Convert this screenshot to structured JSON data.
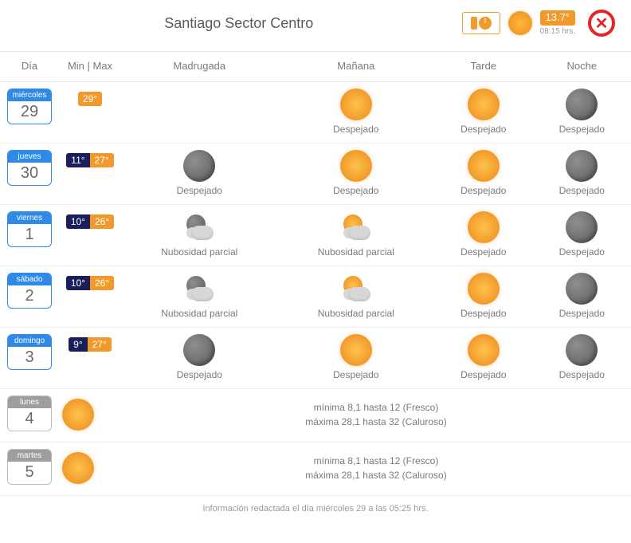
{
  "header": {
    "title": "Santiago Sector Centro",
    "current_temp": "13.7°",
    "current_time": "08:15 hrs.",
    "close_glyph": "✕"
  },
  "columns": {
    "day": "Día",
    "minmax": "Min | Max",
    "periods": [
      "Madrugada",
      "Mañana",
      "Tarde",
      "Noche"
    ]
  },
  "labels": {
    "clear": "Despejado",
    "partial": "Nubosidad parcial"
  },
  "days": [
    {
      "dow": "miércoles",
      "num": "29",
      "chip": "blue",
      "min": null,
      "max": "29°",
      "cells": [
        {
          "icon": null,
          "label": null
        },
        {
          "icon": "sun",
          "label": "Despejado"
        },
        {
          "icon": "sun",
          "label": "Despejado"
        },
        {
          "icon": "moon",
          "label": "Despejado"
        }
      ]
    },
    {
      "dow": "jueves",
      "num": "30",
      "chip": "blue",
      "min": "11°",
      "max": "27°",
      "cells": [
        {
          "icon": "moon",
          "label": "Despejado"
        },
        {
          "icon": "sun",
          "label": "Despejado"
        },
        {
          "icon": "sun",
          "label": "Despejado"
        },
        {
          "icon": "moon",
          "label": "Despejado"
        }
      ]
    },
    {
      "dow": "viernes",
      "num": "1",
      "chip": "blue",
      "min": "10°",
      "max": "26°",
      "cells": [
        {
          "icon": "cloud-night",
          "label": "Nubosidad parcial"
        },
        {
          "icon": "cloud-day",
          "label": "Nubosidad parcial"
        },
        {
          "icon": "sun",
          "label": "Despejado"
        },
        {
          "icon": "moon",
          "label": "Despejado"
        }
      ]
    },
    {
      "dow": "sábado",
      "num": "2",
      "chip": "blue",
      "min": "10°",
      "max": "26°",
      "cells": [
        {
          "icon": "cloud-night",
          "label": "Nubosidad parcial"
        },
        {
          "icon": "cloud-day",
          "label": "Nubosidad parcial"
        },
        {
          "icon": "sun",
          "label": "Despejado"
        },
        {
          "icon": "moon",
          "label": "Despejado"
        }
      ]
    },
    {
      "dow": "domingo",
      "num": "3",
      "chip": "blue",
      "min": "9°",
      "max": "27°",
      "cells": [
        {
          "icon": "moon",
          "label": "Despejado"
        },
        {
          "icon": "sun",
          "label": "Despejado"
        },
        {
          "icon": "sun",
          "label": "Despejado"
        },
        {
          "icon": "moon",
          "label": "Despejado"
        }
      ]
    }
  ],
  "summary_days": [
    {
      "dow": "lunes",
      "num": "4",
      "chip": "grey",
      "icon": "sun",
      "line1": "mínima 8,1 hasta 12 (Fresco)",
      "line2": "máxima 28,1 hasta 32 (Caluroso)"
    },
    {
      "dow": "martes",
      "num": "5",
      "chip": "grey",
      "icon": "sun",
      "line1": "mínima 8,1 hasta 12 (Fresco)",
      "line2": "máxima 28,1 hasta 32 (Caluroso)"
    }
  ],
  "footer": "Información redactada el día miércoles 29 a las 05:25 hrs.",
  "colors": {
    "accent_orange": "#f19a2b",
    "accent_blue": "#2e8ae6",
    "dark_navy": "#1a1f5c",
    "close_red": "#e42525",
    "text_grey": "#6b6b6b",
    "border_grey": "#e5e5e5"
  }
}
